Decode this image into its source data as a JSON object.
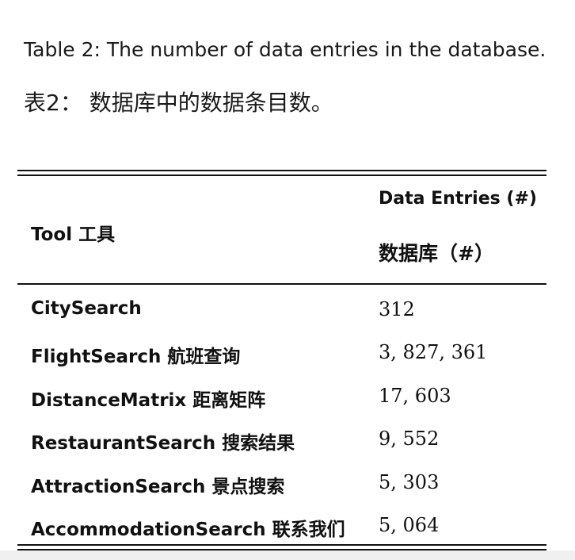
{
  "caption": {
    "en": "Table 2: The number of data entries in the database.",
    "zh": "表2： 数据库中的数据条目数。"
  },
  "table": {
    "headers": {
      "tool": "Tool 工具",
      "entries_en": "Data Entries (#)",
      "entries_zh": "数据库（#）"
    },
    "rows": [
      {
        "tool": "CitySearch",
        "entries": "312"
      },
      {
        "tool": "FlightSearch 航班查询",
        "entries": "3, 827, 361"
      },
      {
        "tool": "DistanceMatrix 距离矩阵",
        "entries": "17, 603"
      },
      {
        "tool": "RestaurantSearch 搜索结果",
        "entries": "9, 552"
      },
      {
        "tool": "AttractionSearch 景点搜索",
        "entries": "5, 303"
      },
      {
        "tool": "AccommodationSearch 联系我们",
        "entries": "5, 064"
      }
    ]
  }
}
